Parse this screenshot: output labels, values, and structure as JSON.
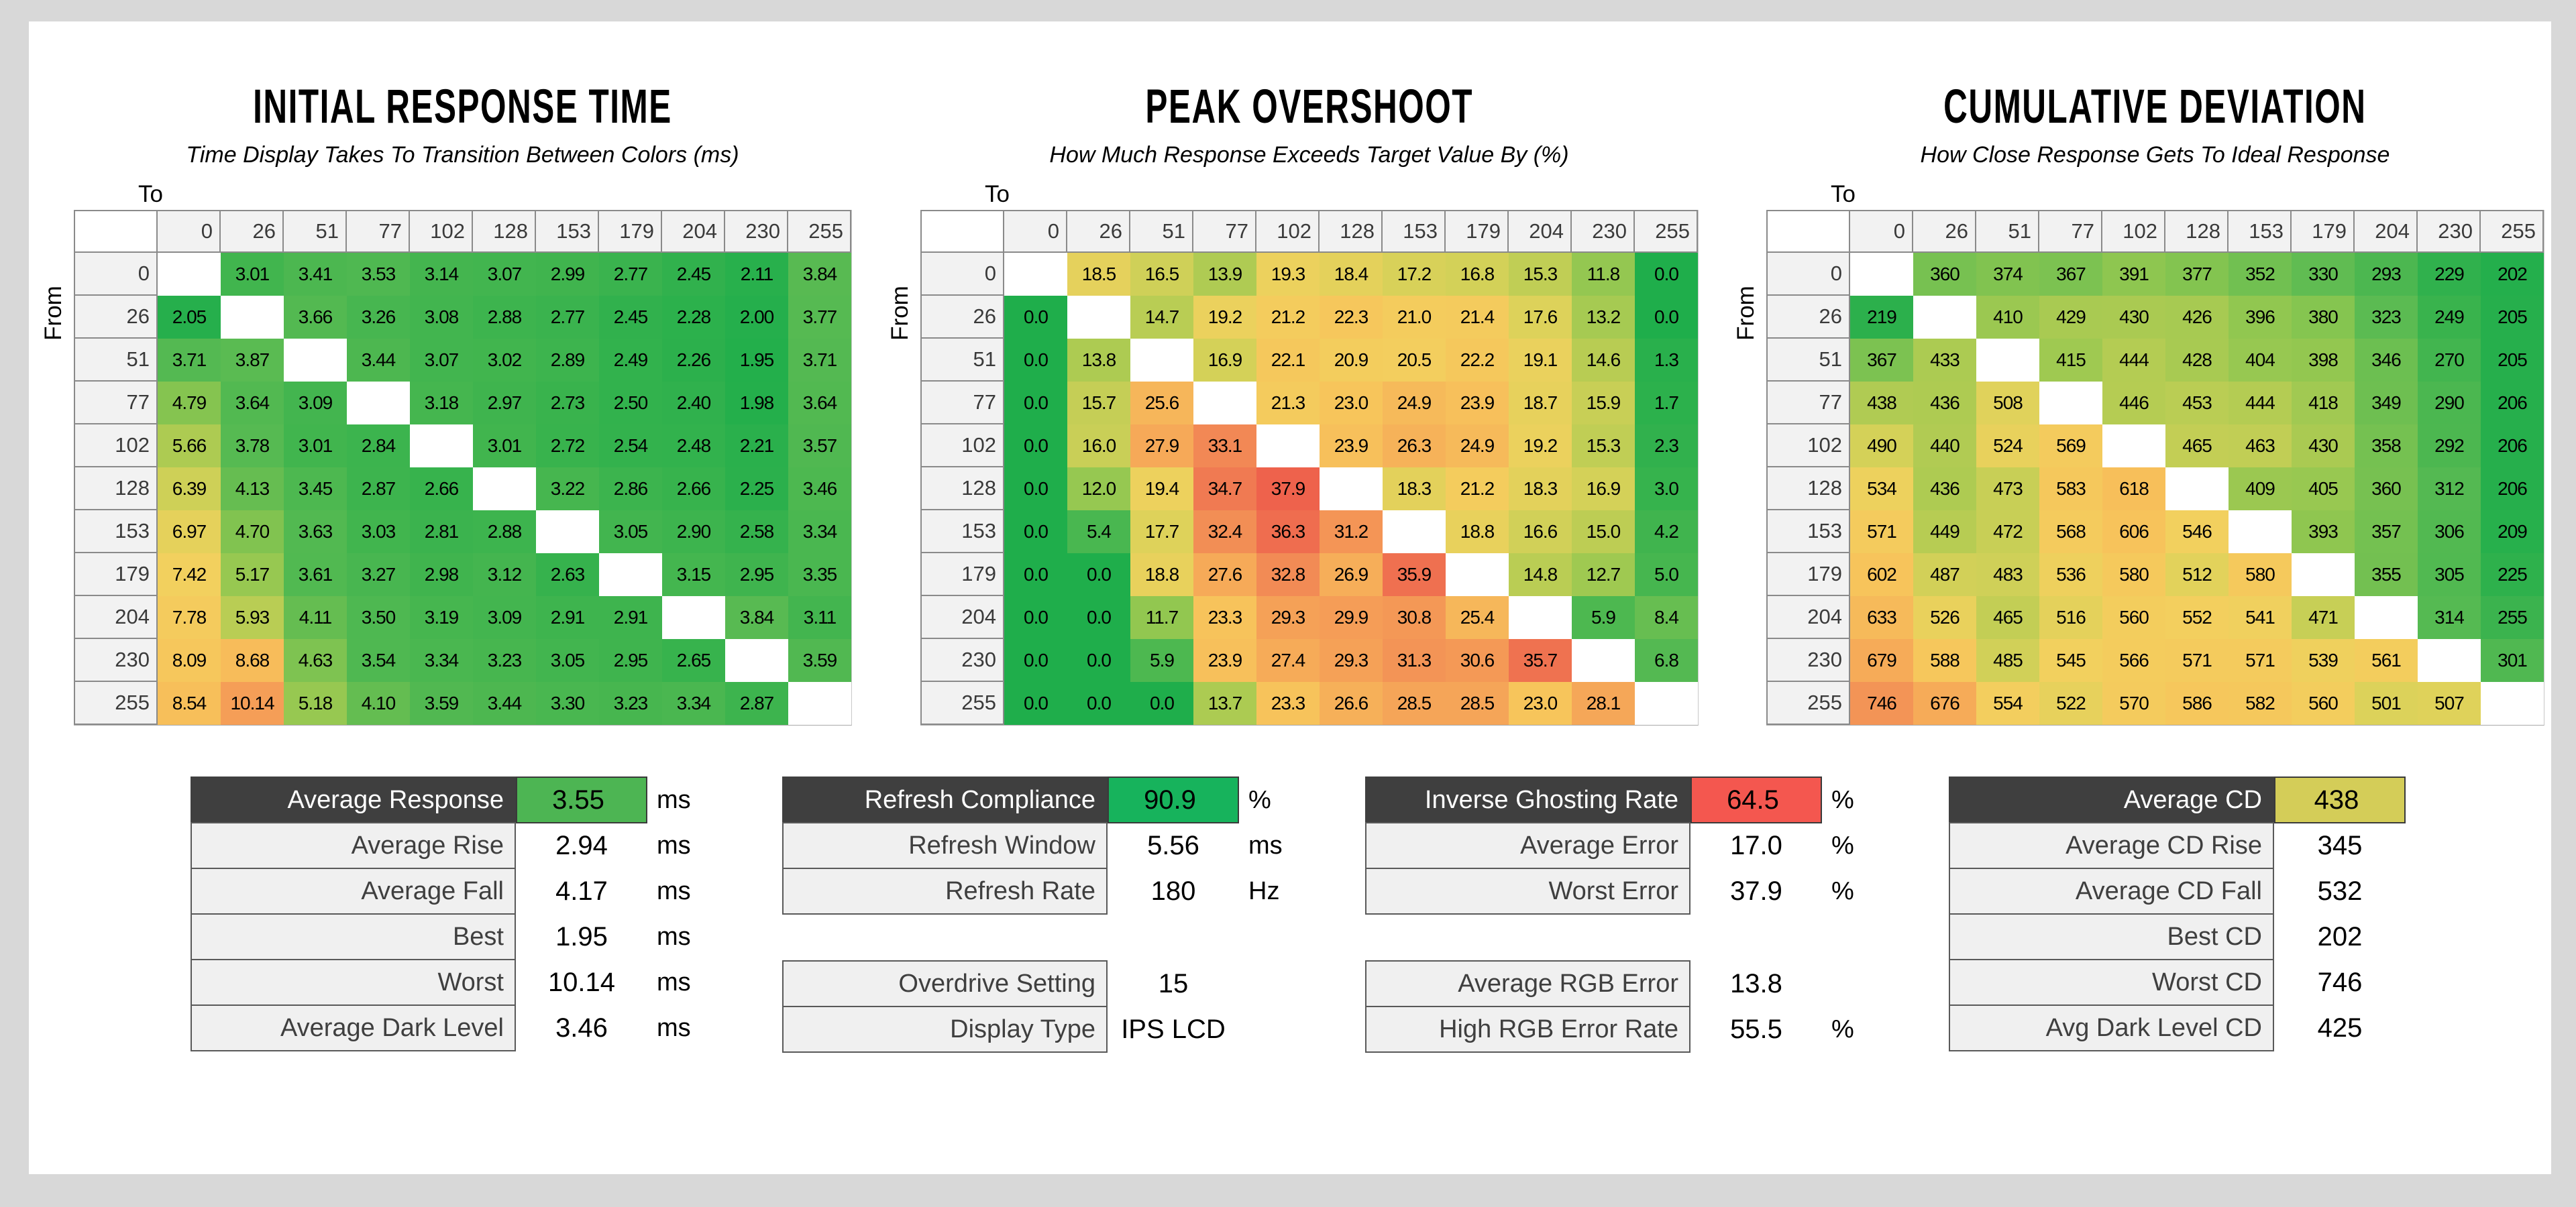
{
  "page": {
    "bg": "#d8d8d8",
    "panel_bg": "#ffffff"
  },
  "colormap": {
    "stops": [
      [
        0.0,
        "#1fae4b"
      ],
      [
        0.1,
        "#3eb44e"
      ],
      [
        0.18,
        "#57ba52"
      ],
      [
        0.28,
        "#8cc650"
      ],
      [
        0.36,
        "#b5cc53"
      ],
      [
        0.44,
        "#ddd25a"
      ],
      [
        0.5,
        "#f2d05e"
      ],
      [
        0.58,
        "#f7c45b"
      ],
      [
        0.66,
        "#f6b159"
      ],
      [
        0.74,
        "#f59f57"
      ],
      [
        0.82,
        "#f28b55"
      ],
      [
        0.9,
        "#ef6f50"
      ],
      [
        1.0,
        "#ec5347"
      ]
    ]
  },
  "chart_data": [
    {
      "type": "heatmap",
      "title": "INITIAL RESPONSE TIME",
      "subtitle": "Time Display Takes To Transition Between Colors (ms)",
      "xlabel": "To",
      "ylabel": "From",
      "unit": "ms",
      "categories": [
        "0",
        "26",
        "51",
        "77",
        "102",
        "128",
        "153",
        "179",
        "204",
        "230",
        "255"
      ],
      "color_domain": [
        1.8,
        13
      ],
      "matrix": [
        [
          null,
          "3.01",
          "3.41",
          "3.53",
          "3.14",
          "3.07",
          "2.99",
          "2.77",
          "2.45",
          "2.11",
          "3.84"
        ],
        [
          "2.05",
          null,
          "3.66",
          "3.26",
          "3.08",
          "2.88",
          "2.77",
          "2.45",
          "2.28",
          "2.00",
          "3.77"
        ],
        [
          "3.71",
          "3.87",
          null,
          "3.44",
          "3.07",
          "3.02",
          "2.89",
          "2.49",
          "2.26",
          "1.95",
          "3.71"
        ],
        [
          "4.79",
          "3.64",
          "3.09",
          null,
          "3.18",
          "2.97",
          "2.73",
          "2.50",
          "2.40",
          "1.98",
          "3.64"
        ],
        [
          "5.66",
          "3.78",
          "3.01",
          "2.84",
          null,
          "3.01",
          "2.72",
          "2.54",
          "2.48",
          "2.21",
          "3.57"
        ],
        [
          "6.39",
          "4.13",
          "3.45",
          "2.87",
          "2.66",
          null,
          "3.22",
          "2.86",
          "2.66",
          "2.25",
          "3.46"
        ],
        [
          "6.97",
          "4.70",
          "3.63",
          "3.03",
          "2.81",
          "2.88",
          null,
          "3.05",
          "2.90",
          "2.58",
          "3.34"
        ],
        [
          "7.42",
          "5.17",
          "3.61",
          "3.27",
          "2.98",
          "3.12",
          "2.63",
          null,
          "3.15",
          "2.95",
          "3.35"
        ],
        [
          "7.78",
          "5.93",
          "4.11",
          "3.50",
          "3.19",
          "3.09",
          "2.91",
          "2.91",
          null,
          "3.84",
          "3.11"
        ],
        [
          "8.09",
          "8.68",
          "4.63",
          "3.54",
          "3.34",
          "3.23",
          "3.05",
          "2.95",
          "2.65",
          null,
          "3.59"
        ],
        [
          "8.54",
          "10.14",
          "5.18",
          "4.10",
          "3.59",
          "3.44",
          "3.30",
          "3.23",
          "3.34",
          "2.87",
          null
        ]
      ]
    },
    {
      "type": "heatmap",
      "title": "PEAK OVERSHOOT",
      "subtitle": "How Much Response Exceeds Target Value By (%)",
      "xlabel": "To",
      "ylabel": "From",
      "unit": "%",
      "categories": [
        "0",
        "26",
        "51",
        "77",
        "102",
        "128",
        "153",
        "179",
        "204",
        "230",
        "255"
      ],
      "color_domain": [
        0,
        40
      ],
      "matrix": [
        [
          null,
          "18.5",
          "16.5",
          "13.9",
          "19.3",
          "18.4",
          "17.2",
          "16.8",
          "15.3",
          "11.8",
          "0.0"
        ],
        [
          "0.0",
          null,
          "14.7",
          "19.2",
          "21.2",
          "22.3",
          "21.0",
          "21.4",
          "17.6",
          "13.2",
          "0.0"
        ],
        [
          "0.0",
          "13.8",
          null,
          "16.9",
          "22.1",
          "20.9",
          "20.5",
          "22.2",
          "19.1",
          "14.6",
          "1.3"
        ],
        [
          "0.0",
          "15.7",
          "25.6",
          null,
          "21.3",
          "23.0",
          "24.9",
          "23.9",
          "18.7",
          "15.9",
          "1.7"
        ],
        [
          "0.0",
          "16.0",
          "27.9",
          "33.1",
          null,
          "23.9",
          "26.3",
          "24.9",
          "19.2",
          "15.3",
          "2.3"
        ],
        [
          "0.0",
          "12.0",
          "19.4",
          "34.7",
          "37.9",
          null,
          "18.3",
          "21.2",
          "18.3",
          "16.9",
          "3.0"
        ],
        [
          "0.0",
          "5.4",
          "17.7",
          "32.4",
          "36.3",
          "31.2",
          null,
          "18.8",
          "16.6",
          "15.0",
          "4.2"
        ],
        [
          "0.0",
          "0.0",
          "18.8",
          "27.6",
          "32.8",
          "26.9",
          "35.9",
          null,
          "14.8",
          "12.7",
          "5.0"
        ],
        [
          "0.0",
          "0.0",
          "11.7",
          "23.3",
          "29.3",
          "29.9",
          "30.8",
          "25.4",
          null,
          "5.9",
          "8.4"
        ],
        [
          "0.0",
          "0.0",
          "5.9",
          "23.9",
          "27.4",
          "29.3",
          "31.3",
          "30.6",
          "35.7",
          null,
          "6.8"
        ],
        [
          "0.0",
          "0.0",
          "0.0",
          "13.7",
          "23.3",
          "26.6",
          "28.5",
          "28.5",
          "23.0",
          "28.1",
          null
        ]
      ]
    },
    {
      "type": "heatmap",
      "title": "CUMULATIVE DEVIATION",
      "subtitle": "How Close Response Gets To Ideal Response",
      "xlabel": "To",
      "ylabel": "From",
      "unit": "",
      "categories": [
        "0",
        "26",
        "51",
        "77",
        "102",
        "128",
        "153",
        "179",
        "204",
        "230",
        "255"
      ],
      "color_domain": [
        190,
        900
      ],
      "matrix": [
        [
          null,
          "360",
          "374",
          "367",
          "391",
          "377",
          "352",
          "330",
          "293",
          "229",
          "202"
        ],
        [
          "219",
          null,
          "410",
          "429",
          "430",
          "426",
          "396",
          "380",
          "323",
          "249",
          "205"
        ],
        [
          "367",
          "433",
          null,
          "415",
          "444",
          "428",
          "404",
          "398",
          "346",
          "270",
          "205"
        ],
        [
          "438",
          "436",
          "508",
          null,
          "446",
          "453",
          "444",
          "418",
          "349",
          "290",
          "206"
        ],
        [
          "490",
          "440",
          "524",
          "569",
          null,
          "465",
          "463",
          "430",
          "358",
          "292",
          "206"
        ],
        [
          "534",
          "436",
          "473",
          "583",
          "618",
          null,
          "409",
          "405",
          "360",
          "312",
          "206"
        ],
        [
          "571",
          "449",
          "472",
          "568",
          "606",
          "546",
          null,
          "393",
          "357",
          "306",
          "209"
        ],
        [
          "602",
          "487",
          "483",
          "536",
          "580",
          "512",
          "580",
          null,
          "355",
          "305",
          "225"
        ],
        [
          "633",
          "526",
          "465",
          "516",
          "560",
          "552",
          "541",
          "471",
          null,
          "314",
          "255"
        ],
        [
          "679",
          "588",
          "485",
          "545",
          "566",
          "571",
          "571",
          "539",
          "561",
          null,
          "301"
        ],
        [
          "746",
          "676",
          "554",
          "522",
          "570",
          "586",
          "582",
          "560",
          "501",
          "507",
          null
        ]
      ]
    },
    {
      "type": "table",
      "rows": [
        {
          "label": "Average Response",
          "value": "3.55",
          "unit": "ms",
          "dark": true,
          "highlight": "#4db553"
        },
        {
          "label": "Average Rise",
          "value": "2.94",
          "unit": "ms"
        },
        {
          "label": "Average Fall",
          "value": "4.17",
          "unit": "ms"
        },
        {
          "label": "Best",
          "value": "1.95",
          "unit": "ms"
        },
        {
          "label": "Worst",
          "value": "10.14",
          "unit": "ms"
        },
        {
          "label": "Average Dark Level",
          "value": "3.46",
          "unit": "ms"
        }
      ]
    },
    {
      "type": "table",
      "rows": [
        {
          "label": "Refresh Compliance",
          "value": "90.9",
          "unit": "%",
          "dark": true,
          "highlight": "#17b35c"
        },
        {
          "label": "Refresh Window",
          "value": "5.56",
          "unit": "ms"
        },
        {
          "label": "Refresh Rate",
          "value": "180",
          "unit": "Hz"
        },
        {
          "label": "Overdrive Setting",
          "value": "15",
          "unit": "",
          "gap_before": true
        },
        {
          "label": "Display Type",
          "value": "IPS LCD",
          "unit": ""
        }
      ]
    },
    {
      "type": "table",
      "rows": [
        {
          "label": "Inverse Ghosting Rate",
          "value": "64.5",
          "unit": "%",
          "dark": true,
          "highlight": "#f4574f"
        },
        {
          "label": "Average Error",
          "value": "17.0",
          "unit": "%"
        },
        {
          "label": "Worst Error",
          "value": "37.9",
          "unit": "%"
        },
        {
          "label": "Average RGB Error",
          "value": "13.8",
          "unit": "",
          "gap_before": true
        },
        {
          "label": "High RGB Error Rate",
          "value": "55.5",
          "unit": "%"
        }
      ]
    },
    {
      "type": "table",
      "rows": [
        {
          "label": "Average CD",
          "value": "438",
          "unit": "",
          "dark": true,
          "highlight": "#d4cd58"
        },
        {
          "label": "Average CD Rise",
          "value": "345",
          "unit": ""
        },
        {
          "label": "Average CD Fall",
          "value": "532",
          "unit": ""
        },
        {
          "label": "Best CD",
          "value": "202",
          "unit": ""
        },
        {
          "label": "Worst CD",
          "value": "746",
          "unit": ""
        },
        {
          "label": "Avg Dark Level CD",
          "value": "425",
          "unit": ""
        }
      ]
    }
  ]
}
